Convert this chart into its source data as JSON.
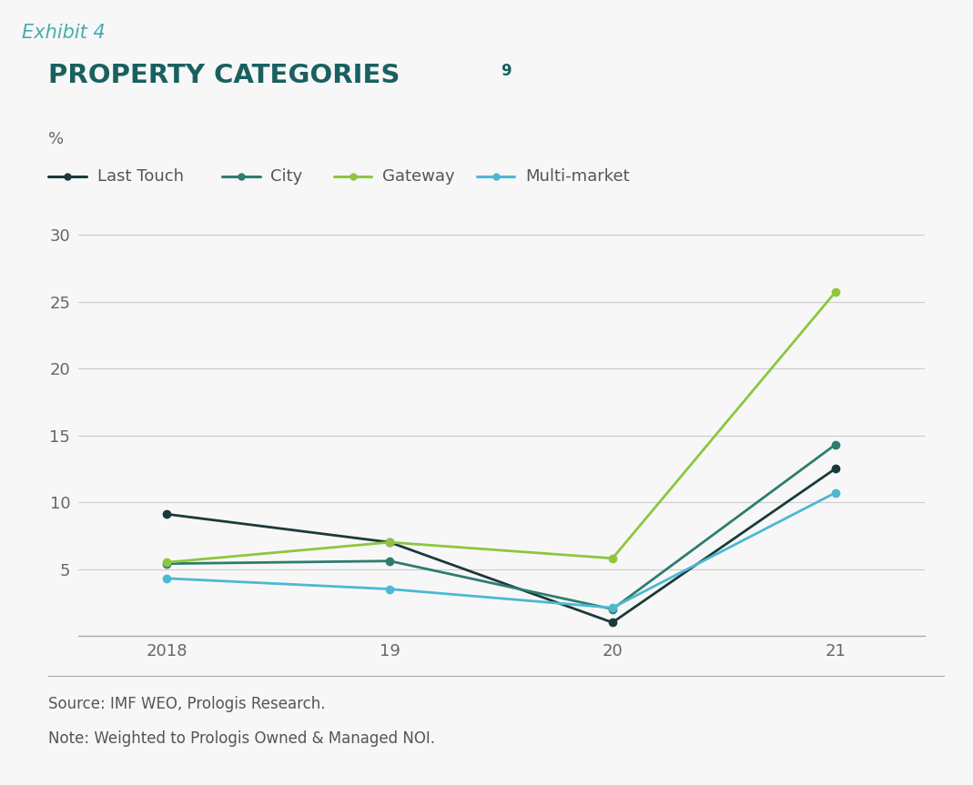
{
  "title_exhibit": "Exhibit 4",
  "title_main": "PROPERTY CATEGORIES",
  "title_superscript": "9",
  "ylabel": "%",
  "background_header": "#e0e0e0",
  "background_chart": "#f7f7f7",
  "x_values": [
    2018,
    2019,
    2020,
    2021
  ],
  "x_tick_labels": [
    "2018",
    "19",
    "20",
    "21"
  ],
  "series": [
    {
      "name": "Last Touch",
      "color": "#1a3a3a",
      "values": [
        9.1,
        7.0,
        1.0,
        12.5
      ]
    },
    {
      "name": "City",
      "color": "#2d7d6e",
      "values": [
        5.4,
        5.6,
        2.0,
        14.3
      ]
    },
    {
      "name": "Gateway",
      "color": "#8dc63f",
      "values": [
        5.5,
        7.0,
        5.8,
        25.7
      ]
    },
    {
      "name": "Multi-market",
      "color": "#4cb8d4",
      "values": [
        4.3,
        3.5,
        2.1,
        10.7
      ]
    }
  ],
  "ylim": [
    0,
    32
  ],
  "yticks": [
    0,
    5,
    10,
    15,
    20,
    25,
    30
  ],
  "ytick_labels": [
    "",
    "5",
    "10",
    "15",
    "20",
    "25",
    "30"
  ],
  "source_line1": "Source: IMF WEO, Prologis Research.",
  "source_line2": "Note: Weighted to Prologis Owned & Managed NOI.",
  "exhibit_color": "#4aabab",
  "title_color": "#1a6060",
  "grid_color": "#cccccc",
  "spine_color": "#aaaaaa",
  "tick_label_color": "#666666",
  "legend_text_color": "#555555",
  "source_text_color": "#555555",
  "marker_size": 6,
  "linewidth": 2.0
}
